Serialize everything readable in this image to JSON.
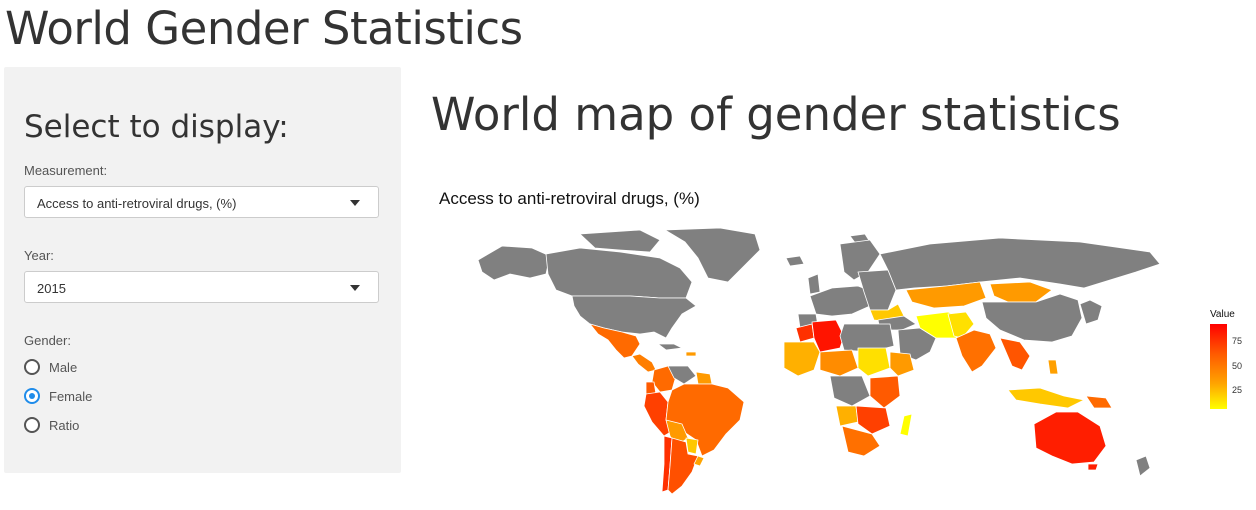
{
  "app": {
    "title": "World Gender Statistics"
  },
  "sidebar": {
    "heading": "Select to display:",
    "measurement": {
      "label": "Measurement:",
      "value": "Access to anti-retroviral drugs, (%)"
    },
    "year": {
      "label": "Year:",
      "value": "2015"
    },
    "gender": {
      "label": "Gender:",
      "options": [
        "Male",
        "Female",
        "Ratio"
      ],
      "selected": "Female"
    }
  },
  "main": {
    "heading": "World map of gender statistics",
    "plot_title": "Access to anti-retroviral drugs,  (%)",
    "legend": {
      "title": "Value",
      "ticks": [
        "75",
        "50",
        "25"
      ]
    }
  },
  "colors": {
    "accent": "#1f8cea",
    "no_data": "#808080",
    "scale_high": "#ff0000",
    "scale_mid": "#ff8c00",
    "scale_low": "#ffff00"
  }
}
